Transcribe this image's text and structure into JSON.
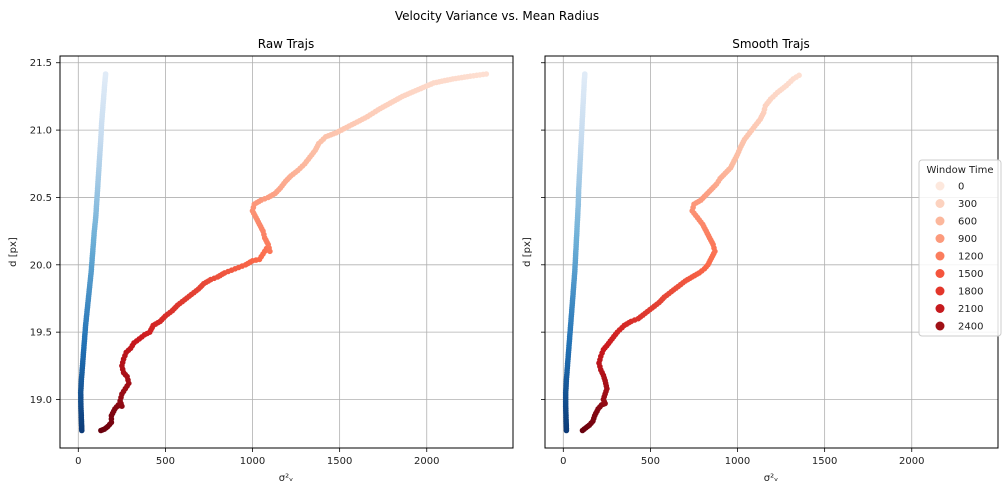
{
  "figure": {
    "title": "Velocity Variance vs. Mean Radius"
  },
  "chart_data": [
    {
      "type": "scatter",
      "title": "Raw Trajs",
      "xlabel": "σ²ᵥ",
      "ylabel": "d [px]",
      "xlim": [
        -105,
        2495
      ],
      "ylim": [
        18.64,
        21.55
      ],
      "xticks": [
        "0",
        "500",
        "1000",
        "1500",
        "2000"
      ],
      "yticks": [
        "19.0",
        "19.5",
        "20.0",
        "20.5",
        "21.0",
        "21.5"
      ],
      "grid": true,
      "colormaps": {
        "blue_series": "Blues",
        "red_series": "Reds"
      },
      "blue_series": [
        [
          20,
          18.77
        ],
        [
          18,
          18.85
        ],
        [
          15,
          18.95
        ],
        [
          14,
          19.05
        ],
        [
          18,
          19.15
        ],
        [
          24,
          19.25
        ],
        [
          30,
          19.35
        ],
        [
          36,
          19.45
        ],
        [
          42,
          19.55
        ],
        [
          50,
          19.65
        ],
        [
          58,
          19.75
        ],
        [
          66,
          19.85
        ],
        [
          74,
          19.95
        ],
        [
          80,
          20.05
        ],
        [
          86,
          20.15
        ],
        [
          92,
          20.25
        ],
        [
          100,
          20.35
        ],
        [
          105,
          20.45
        ],
        [
          110,
          20.55
        ],
        [
          115,
          20.65
        ],
        [
          120,
          20.75
        ],
        [
          125,
          20.85
        ],
        [
          130,
          20.95
        ],
        [
          134,
          21.05
        ],
        [
          140,
          21.15
        ],
        [
          146,
          21.25
        ],
        [
          152,
          21.35
        ],
        [
          158,
          21.43
        ]
      ],
      "red_series": [
        [
          130,
          18.77
        ],
        [
          150,
          18.78
        ],
        [
          170,
          18.8
        ],
        [
          190,
          18.83
        ],
        [
          190,
          18.88
        ],
        [
          210,
          18.93
        ],
        [
          230,
          18.96
        ],
        [
          250,
          18.95
        ],
        [
          240,
          18.99
        ],
        [
          250,
          19.04
        ],
        [
          270,
          19.08
        ],
        [
          290,
          19.12
        ],
        [
          280,
          19.17
        ],
        [
          260,
          19.2
        ],
        [
          250,
          19.25
        ],
        [
          260,
          19.3
        ],
        [
          275,
          19.35
        ],
        [
          300,
          19.38
        ],
        [
          320,
          19.42
        ],
        [
          350,
          19.45
        ],
        [
          380,
          19.48
        ],
        [
          410,
          19.5
        ],
        [
          430,
          19.55
        ],
        [
          470,
          19.58
        ],
        [
          500,
          19.62
        ],
        [
          540,
          19.66
        ],
        [
          570,
          19.7
        ],
        [
          610,
          19.74
        ],
        [
          650,
          19.78
        ],
        [
          690,
          19.82
        ],
        [
          720,
          19.86
        ],
        [
          760,
          19.89
        ],
        [
          800,
          19.91
        ],
        [
          840,
          19.94
        ],
        [
          880,
          19.96
        ],
        [
          920,
          19.98
        ],
        [
          960,
          20.0
        ],
        [
          1000,
          20.03
        ],
        [
          1040,
          20.04
        ],
        [
          1060,
          20.08
        ],
        [
          1080,
          20.12
        ],
        [
          1100,
          20.1
        ],
        [
          1090,
          20.15
        ],
        [
          1070,
          20.2
        ],
        [
          1060,
          20.25
        ],
        [
          1040,
          20.3
        ],
        [
          1020,
          20.35
        ],
        [
          1000,
          20.4
        ],
        [
          1010,
          20.45
        ],
        [
          1050,
          20.48
        ],
        [
          1090,
          20.5
        ],
        [
          1130,
          20.53
        ],
        [
          1160,
          20.57
        ],
        [
          1190,
          20.62
        ],
        [
          1220,
          20.66
        ],
        [
          1260,
          20.7
        ],
        [
          1300,
          20.75
        ],
        [
          1330,
          20.8
        ],
        [
          1360,
          20.85
        ],
        [
          1380,
          20.9
        ],
        [
          1420,
          20.95
        ],
        [
          1480,
          20.98
        ],
        [
          1540,
          21.02
        ],
        [
          1600,
          21.06
        ],
        [
          1660,
          21.1
        ],
        [
          1720,
          21.15
        ],
        [
          1790,
          21.2
        ],
        [
          1860,
          21.25
        ],
        [
          1950,
          21.3
        ],
        [
          2040,
          21.35
        ],
        [
          2150,
          21.38
        ],
        [
          2250,
          21.4
        ],
        [
          2360,
          21.42
        ]
      ]
    },
    {
      "type": "scatter",
      "title": "Smooth Trajs",
      "xlabel": "σ²ᵥ",
      "ylabel": "d [px]",
      "xlim": [
        -105,
        2495
      ],
      "ylim": [
        18.64,
        21.55
      ],
      "xticks": [
        "0",
        "500",
        "1000",
        "1500",
        "2000"
      ],
      "grid": true,
      "colormaps": {
        "blue_series": "Blues",
        "red_series": "Reds"
      },
      "blue_series": [
        [
          18,
          18.77
        ],
        [
          16,
          18.85
        ],
        [
          14,
          18.95
        ],
        [
          14,
          19.05
        ],
        [
          18,
          19.15
        ],
        [
          24,
          19.25
        ],
        [
          30,
          19.35
        ],
        [
          36,
          19.45
        ],
        [
          42,
          19.55
        ],
        [
          48,
          19.65
        ],
        [
          54,
          19.75
        ],
        [
          60,
          19.85
        ],
        [
          66,
          19.95
        ],
        [
          70,
          20.05
        ],
        [
          74,
          20.15
        ],
        [
          78,
          20.25
        ],
        [
          82,
          20.35
        ],
        [
          86,
          20.45
        ],
        [
          88,
          20.55
        ],
        [
          92,
          20.65
        ],
        [
          96,
          20.75
        ],
        [
          100,
          20.85
        ],
        [
          104,
          20.95
        ],
        [
          108,
          21.05
        ],
        [
          112,
          21.15
        ],
        [
          116,
          21.25
        ],
        [
          120,
          21.35
        ],
        [
          124,
          21.43
        ]
      ],
      "red_series": [
        [
          110,
          18.77
        ],
        [
          130,
          18.79
        ],
        [
          150,
          18.81
        ],
        [
          170,
          18.84
        ],
        [
          180,
          18.88
        ],
        [
          200,
          18.93
        ],
        [
          220,
          18.96
        ],
        [
          240,
          18.97
        ],
        [
          230,
          19.0
        ],
        [
          240,
          19.04
        ],
        [
          250,
          19.08
        ],
        [
          240,
          19.14
        ],
        [
          230,
          19.18
        ],
        [
          215,
          19.22
        ],
        [
          205,
          19.27
        ],
        [
          215,
          19.32
        ],
        [
          230,
          19.37
        ],
        [
          250,
          19.4
        ],
        [
          280,
          19.45
        ],
        [
          310,
          19.5
        ],
        [
          350,
          19.55
        ],
        [
          390,
          19.58
        ],
        [
          430,
          19.6
        ],
        [
          470,
          19.64
        ],
        [
          510,
          19.68
        ],
        [
          550,
          19.72
        ],
        [
          580,
          19.76
        ],
        [
          620,
          19.8
        ],
        [
          660,
          19.84
        ],
        [
          700,
          19.88
        ],
        [
          740,
          19.91
        ],
        [
          780,
          19.94
        ],
        [
          810,
          19.97
        ],
        [
          830,
          20.0
        ],
        [
          850,
          20.05
        ],
        [
          870,
          20.1
        ],
        [
          860,
          20.15
        ],
        [
          840,
          20.2
        ],
        [
          820,
          20.25
        ],
        [
          800,
          20.3
        ],
        [
          770,
          20.35
        ],
        [
          740,
          20.4
        ],
        [
          750,
          20.45
        ],
        [
          790,
          20.48
        ],
        [
          820,
          20.52
        ],
        [
          850,
          20.56
        ],
        [
          880,
          20.6
        ],
        [
          900,
          20.64
        ],
        [
          930,
          20.68
        ],
        [
          960,
          20.72
        ],
        [
          980,
          20.77
        ],
        [
          1000,
          20.82
        ],
        [
          1020,
          20.88
        ],
        [
          1040,
          20.93
        ],
        [
          1070,
          20.98
        ],
        [
          1100,
          21.03
        ],
        [
          1130,
          21.08
        ],
        [
          1150,
          21.13
        ],
        [
          1160,
          21.18
        ],
        [
          1190,
          21.23
        ],
        [
          1230,
          21.28
        ],
        [
          1280,
          21.33
        ],
        [
          1320,
          21.38
        ],
        [
          1370,
          21.42
        ]
      ]
    }
  ],
  "legend": {
    "title": "Window Time",
    "entries": [
      "0",
      "300",
      "600",
      "900",
      "1200",
      "1500",
      "1800",
      "2100",
      "2400"
    ],
    "colors": [
      "#fde8dd",
      "#fcd2bf",
      "#fcb79c",
      "#fc9a7c",
      "#fb7d5d",
      "#f5553d",
      "#e3362a",
      "#c61a1e",
      "#a01016"
    ]
  },
  "colors": {
    "grid": "#b0b0b0",
    "axes": "#000000"
  }
}
